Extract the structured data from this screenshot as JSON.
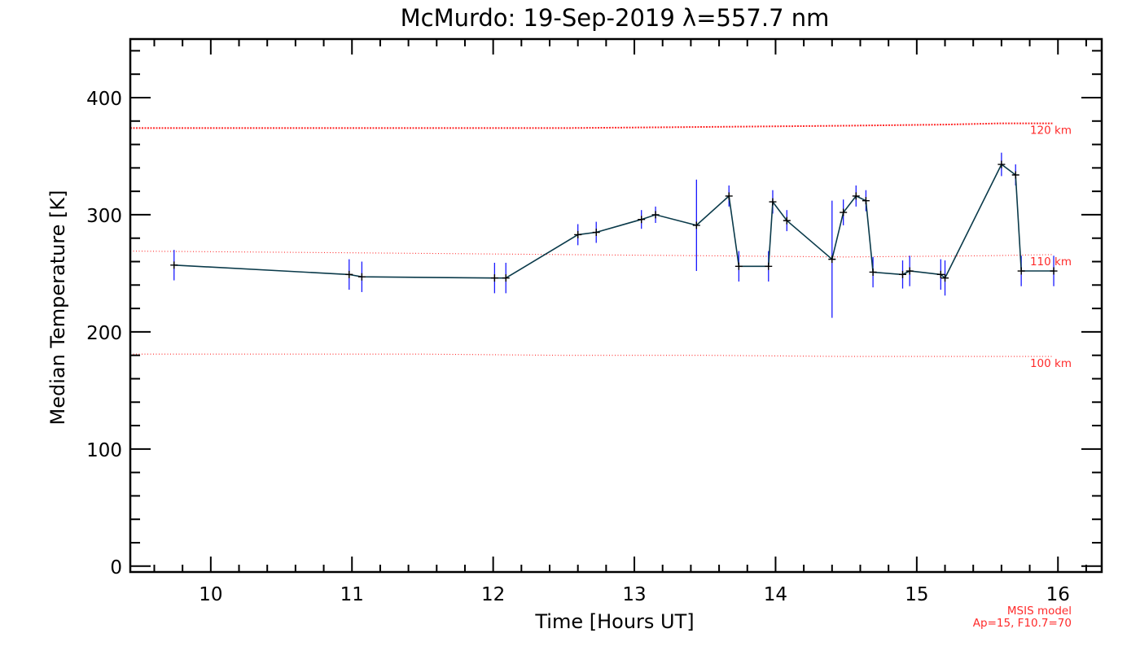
{
  "chart_data": {
    "type": "line",
    "title": "McMurdo: 19-Sep-2019 λ=557.7 nm",
    "xlabel": "Time [Hours UT]",
    "ylabel": "Median Temperature [K]",
    "xlim": [
      9.43,
      16.31
    ],
    "ylim": [
      -5,
      450
    ],
    "xticks": [
      10,
      11,
      12,
      13,
      14,
      15,
      16
    ],
    "xtick_labels": [
      "10",
      "11",
      "12",
      "13",
      "14",
      "15",
      "16"
    ],
    "yticks": [
      0,
      100,
      200,
      300,
      400
    ],
    "ytick_labels": [
      "0",
      "100",
      "200",
      "300",
      "400"
    ],
    "grid": false,
    "colors": {
      "axis": "#000000",
      "series_line": "#0a3a4a",
      "error_bar": "#1a1aff",
      "marker": "#000000",
      "model": "#ff2a2a"
    },
    "series": [
      {
        "name": "Median Temperature",
        "x": [
          9.74,
          10.98,
          11.07,
          12.01,
          12.09,
          12.6,
          12.73,
          13.05,
          13.15,
          13.44,
          13.67,
          13.74,
          13.95,
          13.98,
          14.08,
          14.4,
          14.48,
          14.57,
          14.64,
          14.69,
          14.9,
          14.95,
          15.17,
          15.2,
          15.6,
          15.7,
          15.74,
          15.97
        ],
        "y": [
          257,
          249,
          247,
          246,
          246,
          283,
          285,
          296,
          300,
          291,
          316,
          256,
          256,
          311,
          295,
          262,
          302,
          316,
          312,
          251,
          249,
          252,
          249,
          246,
          343,
          334,
          252,
          252
        ],
        "err": [
          13,
          13,
          13,
          13,
          13,
          9,
          9,
          8,
          7,
          39,
          9,
          13,
          13,
          10,
          9,
          50,
          11,
          9,
          9,
          13,
          12,
          13,
          13,
          15,
          10,
          9,
          13,
          13
        ]
      }
    ],
    "model_curves": [
      {
        "label": "120 km",
        "x": [
          9.43,
          10.5,
          11.5,
          12.5,
          13.5,
          14.5,
          15.2,
          15.6,
          15.97
        ],
        "y": [
          374,
          374,
          374,
          374,
          375,
          376,
          377,
          378,
          378
        ]
      },
      {
        "label": "110 km",
        "x": [
          9.43,
          10.5,
          11.5,
          12.5,
          13.5,
          14.5,
          15.5,
          15.97
        ],
        "y": [
          269,
          268,
          267,
          266,
          265,
          264,
          265,
          266
        ]
      },
      {
        "label": "100 km",
        "x": [
          9.43,
          10.5,
          11.5,
          12.5,
          13.5,
          14.5,
          15.5,
          15.97
        ],
        "y": [
          181,
          181,
          181,
          180,
          180,
          179,
          179,
          179
        ]
      }
    ],
    "annotations": {
      "model_name": "MSIS model",
      "model_params": "Ap=15, F10.7=70"
    }
  }
}
